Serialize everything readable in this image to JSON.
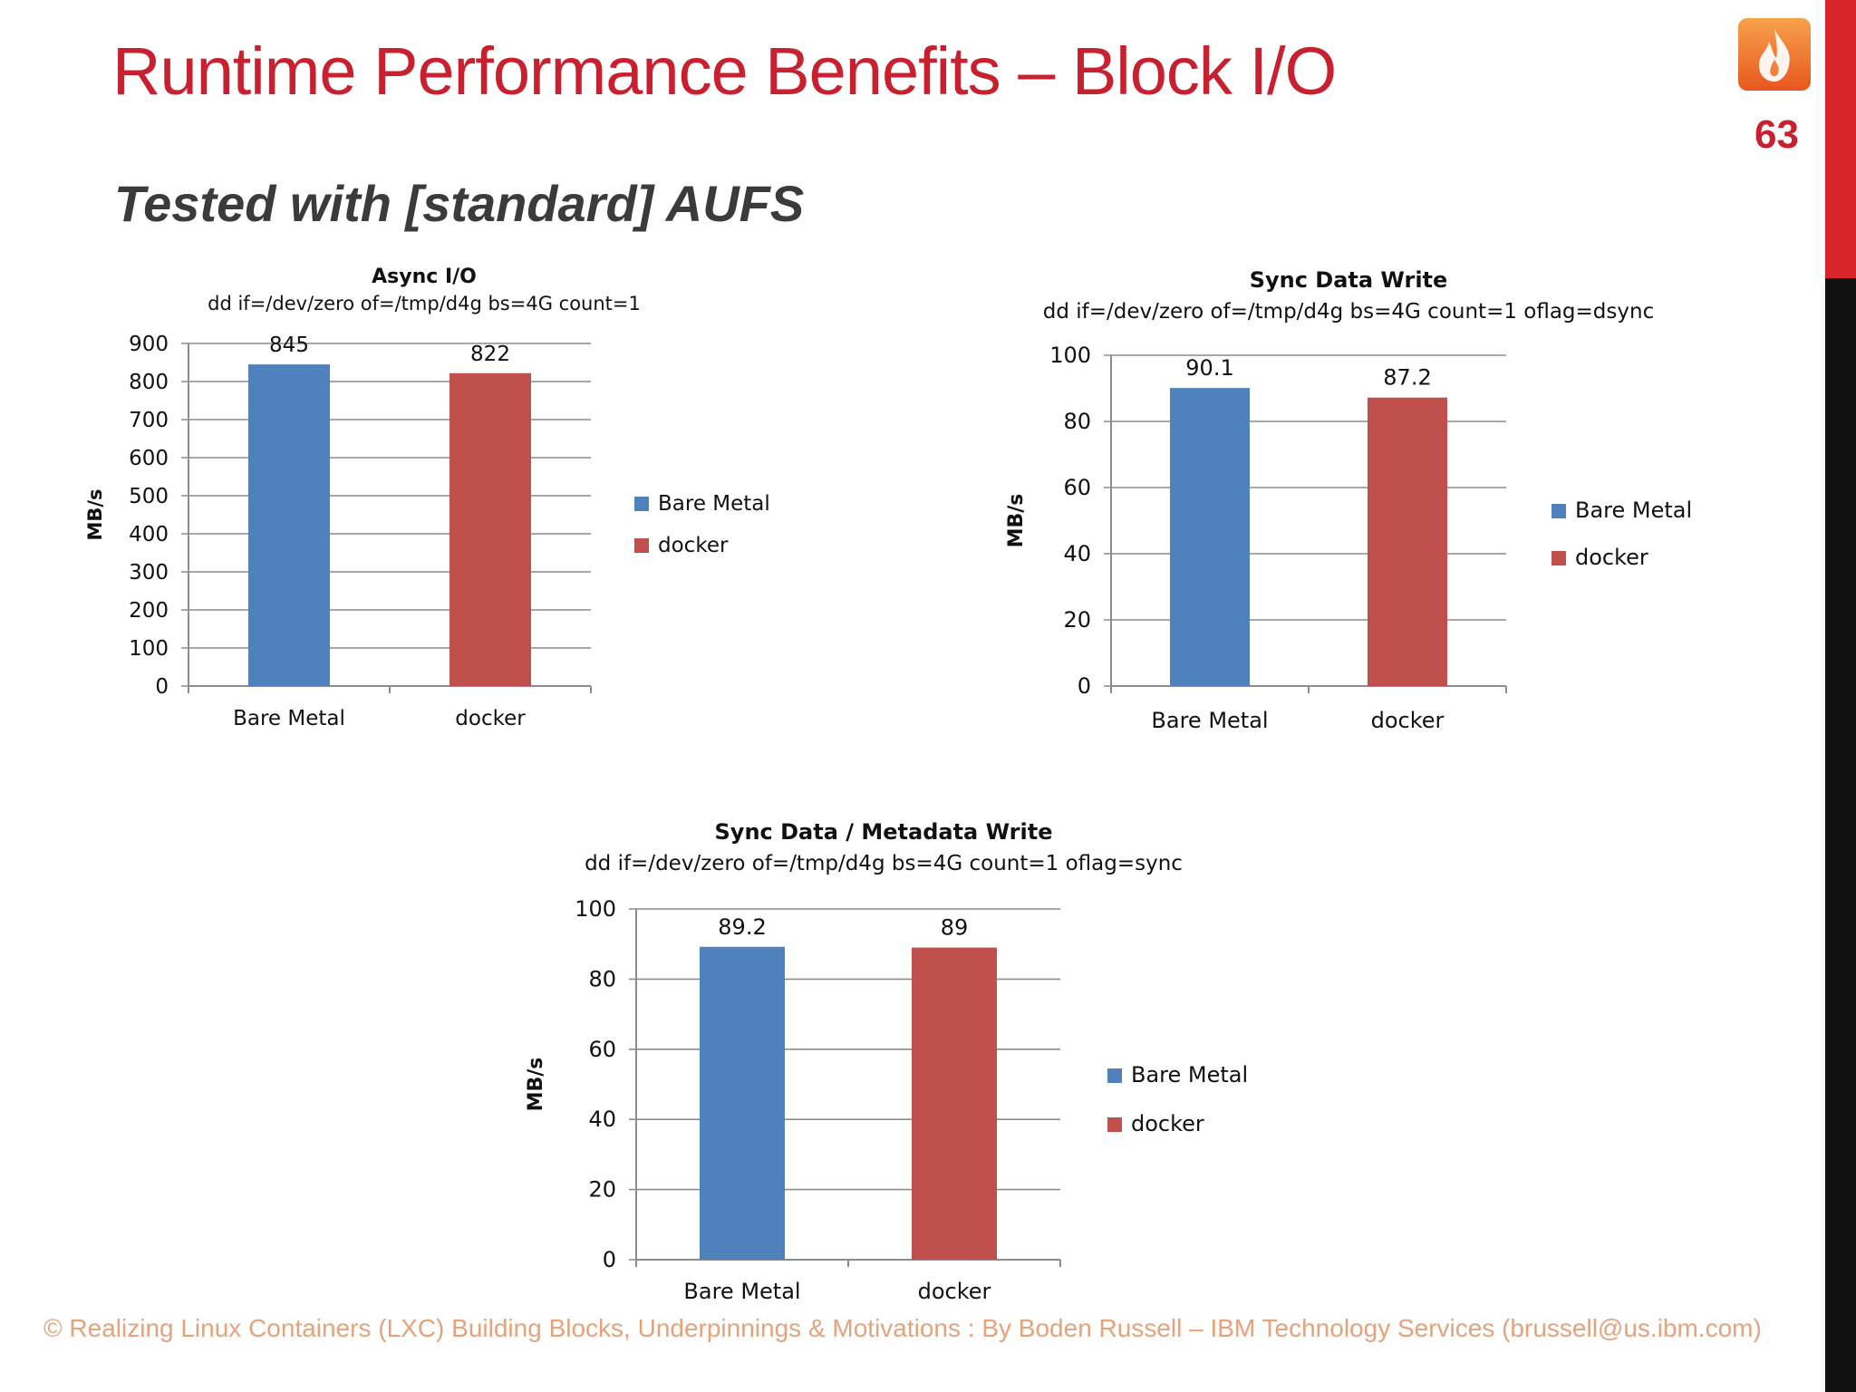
{
  "slide": {
    "title": "Runtime Performance Benefits – Block I/O",
    "subtitle": "Tested with [standard] AUFS",
    "page_number": "63",
    "footer": "© Realizing Linux Containers (LXC) Building Blocks, Underpinnings & Motivations : By Boden Russell – IBM Technology Services (brussell@us.ibm.com)",
    "logo_icon": "flame-icon",
    "colors": {
      "accent": "#c8202f",
      "bare_metal": "#4f81bd",
      "docker": "#c0504d",
      "side_bar_top": "#d8252c",
      "side_bar_bottom": "#111111"
    }
  },
  "chart_data": [
    {
      "type": "bar",
      "title": "Async I/O",
      "subtitle": "dd if=/dev/zero of=/tmp/d4g bs=4G count=1",
      "categories": [
        "Bare Metal",
        "docker"
      ],
      "values": [
        845,
        822
      ],
      "data_labels": [
        "845",
        "822"
      ],
      "ylabel": "MB/s",
      "ylim": [
        0,
        900
      ],
      "yticks": [
        "0",
        "100",
        "200",
        "300",
        "400",
        "500",
        "600",
        "700",
        "800",
        "900"
      ],
      "legend": [
        "Bare Metal",
        "docker"
      ],
      "legend_position": "right",
      "grid": true
    },
    {
      "type": "bar",
      "title": "Sync Data Write",
      "subtitle": "dd if=/dev/zero of=/tmp/d4g bs=4G count=1 oflag=dsync",
      "categories": [
        "Bare Metal",
        "docker"
      ],
      "values": [
        90.1,
        87.2
      ],
      "data_labels": [
        "90.1",
        "87.2"
      ],
      "ylabel": "MB/s",
      "ylim": [
        0,
        100
      ],
      "yticks": [
        "0",
        "20",
        "40",
        "60",
        "80",
        "100"
      ],
      "legend": [
        "Bare Metal",
        "docker"
      ],
      "legend_position": "right",
      "grid": true
    },
    {
      "type": "bar",
      "title": "Sync Data / Metadata Write",
      "subtitle": "dd if=/dev/zero of=/tmp/d4g bs=4G count=1 oflag=sync",
      "categories": [
        "Bare Metal",
        "docker"
      ],
      "values": [
        89.2,
        89
      ],
      "data_labels": [
        "89.2",
        "89"
      ],
      "ylabel": "MB/s",
      "ylim": [
        0,
        100
      ],
      "yticks": [
        "0",
        "20",
        "40",
        "60",
        "80",
        "100"
      ],
      "legend": [
        "Bare Metal",
        "docker"
      ],
      "legend_position": "right",
      "grid": true
    }
  ]
}
